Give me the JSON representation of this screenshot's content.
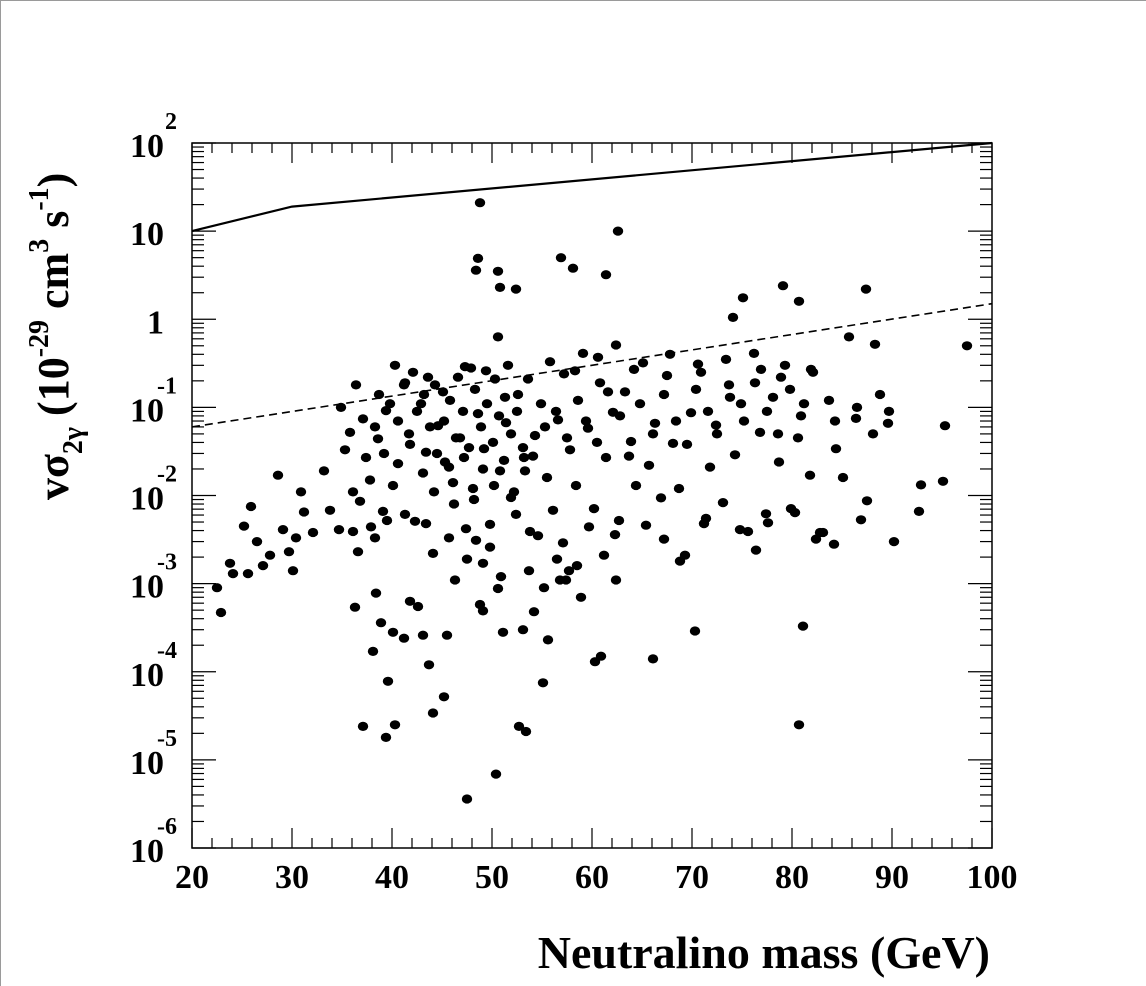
{
  "chart_data": {
    "type": "scatter",
    "title": "",
    "xlabel": "Neutralino mass (GeV)",
    "ylabel": "vσ2γ (10-29 cm3 s-1)",
    "ylabel_parts": {
      "v": "v",
      "sigma": "σ",
      "sub": "2γ",
      "open": " (10",
      "exp1": "-29",
      "cm": " cm",
      "exp2": "3",
      "s": " s",
      "exp3": "-1",
      "close": ")"
    },
    "xlim": [
      20,
      100
    ],
    "ylim": [
      1e-06,
      100
    ],
    "yscale": "log",
    "grid": false,
    "xticks": [
      "20",
      "30",
      "40",
      "50",
      "60",
      "70",
      "80",
      "90",
      "100"
    ],
    "yticks": [
      {
        "base": "10",
        "exp": "-6"
      },
      {
        "base": "10",
        "exp": "-5"
      },
      {
        "base": "10",
        "exp": "-4"
      },
      {
        "base": "10",
        "exp": "-3"
      },
      {
        "base": "10",
        "exp": "-2"
      },
      {
        "base": "10",
        "exp": "-1"
      },
      {
        "base": "1",
        "exp": ""
      },
      {
        "base": "10",
        "exp": ""
      },
      {
        "base": "10",
        "exp": "2"
      }
    ],
    "lines": [
      {
        "style": "solid",
        "x": [
          20,
          30,
          100
        ],
        "y": [
          10,
          19,
          100
        ]
      },
      {
        "style": "dashed",
        "x": [
          20,
          100
        ],
        "y": [
          0.06,
          1.5
        ]
      }
    ],
    "points": [
      [
        22.5,
        0.0009
      ],
      [
        22.9,
        0.00047
      ],
      [
        23.8,
        0.0017
      ],
      [
        24.1,
        0.0013
      ],
      [
        25.2,
        0.0045
      ],
      [
        25.9,
        0.0075
      ],
      [
        26.5,
        0.003
      ],
      [
        25.6,
        0.0013
      ],
      [
        27.1,
        0.0016
      ],
      [
        27.8,
        0.0021
      ],
      [
        28.6,
        0.017
      ],
      [
        29.1,
        0.0041
      ],
      [
        29.7,
        0.0023
      ],
      [
        30.4,
        0.0033
      ],
      [
        30.1,
        0.0014
      ],
      [
        30.9,
        0.011
      ],
      [
        31.2,
        0.0065
      ],
      [
        32.1,
        0.0038
      ],
      [
        33.8,
        0.0068
      ],
      [
        33.2,
        0.019
      ],
      [
        34.7,
        0.0041
      ],
      [
        35.3,
        0.033
      ],
      [
        35.8,
        0.052
      ],
      [
        36.1,
        0.011
      ],
      [
        36.6,
        0.0023
      ],
      [
        37.1,
        0.074
      ],
      [
        36.8,
        0.0086
      ],
      [
        37.4,
        0.027
      ],
      [
        38.3,
        0.0033
      ],
      [
        38.6,
        0.044
      ],
      [
        39.1,
        0.0066
      ],
      [
        39.4,
        0.092
      ],
      [
        40.1,
        0.013
      ],
      [
        40.6,
        0.023
      ],
      [
        41.2,
        0.18
      ],
      [
        41.8,
        0.038
      ],
      [
        42.3,
        0.0051
      ],
      [
        42.9,
        0.11
      ],
      [
        43.4,
        0.031
      ],
      [
        44.1,
        0.0022
      ],
      [
        44.6,
        0.062
      ],
      [
        45.1,
        0.15
      ],
      [
        45.7,
        0.021
      ],
      [
        46.2,
        0.008
      ],
      [
        46.8,
        0.045
      ],
      [
        47.3,
        0.29
      ],
      [
        48.1,
        0.012
      ],
      [
        48.6,
        0.085
      ],
      [
        49.2,
        0.034
      ],
      [
        49.8,
        0.0047
      ],
      [
        50.3,
        0.21
      ],
      [
        50.8,
        0.019
      ],
      [
        51.4,
        0.067
      ],
      [
        51.9,
        0.0095
      ],
      [
        52.6,
        0.14
      ],
      [
        53.2,
        0.027
      ],
      [
        53.8,
        0.0039
      ],
      [
        54.3,
        0.048
      ],
      [
        54.9,
        0.11
      ],
      [
        55.5,
        0.016
      ],
      [
        56.1,
        0.0068
      ],
      [
        56.6,
        0.072
      ],
      [
        57.2,
        0.24
      ],
      [
        57.8,
        0.033
      ],
      [
        58.4,
        0.013
      ],
      [
        59.1,
        0.41
      ],
      [
        59.6,
        0.058
      ],
      [
        60.2,
        0.0071
      ],
      [
        60.8,
        0.19
      ],
      [
        61.4,
        0.027
      ],
      [
        62.1,
        0.088
      ],
      [
        62.7,
        0.0052
      ],
      [
        63.3,
        0.15
      ],
      [
        63.9,
        0.041
      ],
      [
        64.4,
        0.013
      ],
      [
        65.1,
        0.32
      ],
      [
        65.7,
        0.022
      ],
      [
        66.3,
        0.066
      ],
      [
        66.9,
        0.0094
      ],
      [
        67.5,
        0.23
      ],
      [
        68.1,
        0.039
      ],
      [
        68.7,
        0.012
      ],
      [
        69.3,
        0.0021
      ],
      [
        69.9,
        0.087
      ],
      [
        70.6,
        0.31
      ],
      [
        71.2,
        0.0048
      ],
      [
        71.8,
        0.021
      ],
      [
        72.4,
        0.063
      ],
      [
        73.1,
        0.0083
      ],
      [
        73.7,
        0.18
      ],
      [
        74.3,
        0.029
      ],
      [
        74.9,
        0.11
      ],
      [
        75.6,
        0.0039
      ],
      [
        76.2,
        0.41
      ],
      [
        76.8,
        0.052
      ],
      [
        77.4,
        0.0062
      ],
      [
        78.1,
        0.13
      ],
      [
        78.7,
        0.024
      ],
      [
        79.3,
        0.3
      ],
      [
        79.9,
        0.0071
      ],
      [
        80.6,
        0.045
      ],
      [
        81.2,
        0.11
      ],
      [
        81.8,
        0.017
      ],
      [
        82.4,
        0.0032
      ],
      [
        83.1,
        0.0038
      ],
      [
        83.7,
        0.12
      ],
      [
        84.4,
        0.034
      ],
      [
        85.1,
        0.016
      ],
      [
        85.7,
        0.63
      ],
      [
        86.4,
        0.075
      ],
      [
        86.9,
        0.0053
      ],
      [
        87.5,
        0.0087
      ],
      [
        88.3,
        0.52
      ],
      [
        88.8,
        0.14
      ],
      [
        89.6,
        0.066
      ],
      [
        90.2,
        0.003
      ],
      [
        92.7,
        0.0066
      ],
      [
        92.9,
        0.0132
      ],
      [
        95.1,
        0.0145
      ],
      [
        95.3,
        0.062
      ],
      [
        97.5,
        0.5
      ],
      [
        36.3,
        0.00054
      ],
      [
        37.1,
        2.4e-05
      ],
      [
        38.1,
        0.00017
      ],
      [
        38.4,
        0.00078
      ],
      [
        38.9,
        0.00036
      ],
      [
        39.6,
        7.8e-05
      ],
      [
        39.4,
        1.8e-05
      ],
      [
        40.1,
        0.00028
      ],
      [
        40.3,
        2.5e-05
      ],
      [
        41.2,
        0.00024
      ],
      [
        41.8,
        0.00063
      ],
      [
        42.6,
        0.00055
      ],
      [
        43.1,
        0.00026
      ],
      [
        43.7,
        0.00012
      ],
      [
        44.1,
        3.4e-05
      ],
      [
        45.2,
        5.2e-05
      ],
      [
        45.5,
        0.00026
      ],
      [
        47.5,
        3.6e-06
      ],
      [
        48.8,
        0.00058
      ],
      [
        49.1,
        0.00049
      ],
      [
        50.4,
        6.9e-06
      ],
      [
        50.6,
        0.00088
      ],
      [
        51.1,
        0.00028
      ],
      [
        52.7,
        2.4e-05
      ],
      [
        53.4,
        2.1e-05
      ],
      [
        53.1,
        0.0003
      ],
      [
        54.2,
        0.00048
      ],
      [
        55.1,
        7.5e-05
      ],
      [
        55.6,
        0.00023
      ],
      [
        56.8,
        0.0011
      ],
      [
        57.7,
        0.0014
      ],
      [
        58.5,
        0.0016
      ],
      [
        60.3,
        0.00013
      ],
      [
        60.9,
        0.00015
      ],
      [
        62.4,
        0.0011
      ],
      [
        66.1,
        0.00014
      ],
      [
        70.3,
        0.00029
      ],
      [
        80.7,
        2.5e-05
      ],
      [
        81.1,
        0.00033
      ],
      [
        82.8,
        0.0038
      ],
      [
        48.8,
        21
      ],
      [
        48.6,
        4.9
      ],
      [
        48.4,
        3.6
      ],
      [
        50.6,
        3.5
      ],
      [
        50.8,
        2.3
      ],
      [
        52.4,
        2.2
      ],
      [
        56.9,
        5
      ],
      [
        58.1,
        3.8
      ],
      [
        61.4,
        3.2
      ],
      [
        62.6,
        10
      ],
      [
        75.1,
        1.75
      ],
      [
        79.1,
        2.4
      ],
      [
        80.7,
        1.6
      ],
      [
        87.4,
        2.2
      ],
      [
        74.1,
        1.05
      ],
      [
        50.6,
        0.63
      ],
      [
        62.4,
        0.51
      ],
      [
        42.5,
        0.09
      ],
      [
        43.2,
        0.14
      ],
      [
        43.8,
        0.06
      ],
      [
        44.5,
        0.03
      ],
      [
        45.2,
        0.07
      ],
      [
        45.8,
        0.12
      ],
      [
        46.4,
        0.045
      ],
      [
        47.1,
        0.09
      ],
      [
        47.7,
        0.035
      ],
      [
        48.3,
        0.16
      ],
      [
        48.9,
        0.06
      ],
      [
        49.5,
        0.11
      ],
      [
        50.1,
        0.04
      ],
      [
        50.7,
        0.08
      ],
      [
        51.3,
        0.13
      ],
      [
        51.9,
        0.05
      ],
      [
        52.5,
        0.09
      ],
      [
        53.1,
        0.035
      ],
      [
        43.1,
        0.018
      ],
      [
        44.2,
        0.011
      ],
      [
        45.3,
        0.024
      ],
      [
        46.1,
        0.014
      ],
      [
        47.2,
        0.027
      ],
      [
        48.2,
        0.009
      ],
      [
        49.1,
        0.02
      ],
      [
        50.2,
        0.013
      ],
      [
        51.2,
        0.025
      ],
      [
        52.2,
        0.011
      ],
      [
        53.3,
        0.019
      ],
      [
        54.1,
        0.028
      ],
      [
        40.6,
        0.07
      ],
      [
        41.7,
        0.05
      ],
      [
        39.2,
        0.03
      ],
      [
        38.3,
        0.06
      ],
      [
        37.8,
        0.015
      ],
      [
        55.3,
        0.06
      ],
      [
        56.4,
        0.09
      ],
      [
        57.5,
        0.045
      ],
      [
        58.6,
        0.12
      ],
      [
        59.4,
        0.07
      ],
      [
        60.5,
        0.04
      ],
      [
        61.6,
        0.15
      ],
      [
        62.8,
        0.08
      ],
      [
        63.7,
        0.028
      ],
      [
        64.8,
        0.11
      ],
      [
        66.1,
        0.05
      ],
      [
        67.2,
        0.14
      ],
      [
        68.4,
        0.07
      ],
      [
        69.5,
        0.038
      ],
      [
        70.4,
        0.16
      ],
      [
        71.6,
        0.09
      ],
      [
        72.5,
        0.05
      ],
      [
        73.8,
        0.13
      ],
      [
        75.2,
        0.07
      ],
      [
        76.3,
        0.19
      ],
      [
        77.5,
        0.09
      ],
      [
        78.6,
        0.05
      ],
      [
        79.8,
        0.16
      ],
      [
        80.9,
        0.08
      ],
      [
        82.1,
        0.25
      ],
      [
        84.3,
        0.07
      ],
      [
        86.5,
        0.1
      ],
      [
        88.1,
        0.05
      ],
      [
        89.7,
        0.09
      ],
      [
        46.6,
        0.22
      ],
      [
        47.9,
        0.28
      ],
      [
        49.4,
        0.26
      ],
      [
        51.6,
        0.3
      ],
      [
        53.6,
        0.21
      ],
      [
        55.8,
        0.33
      ],
      [
        58.3,
        0.26
      ],
      [
        60.6,
        0.37
      ],
      [
        64.2,
        0.27
      ],
      [
        67.8,
        0.4
      ],
      [
        70.9,
        0.25
      ],
      [
        73.4,
        0.35
      ],
      [
        76.9,
        0.27
      ],
      [
        78.9,
        0.22
      ],
      [
        81.9,
        0.27
      ],
      [
        44.3,
        0.18
      ],
      [
        42.1,
        0.25
      ],
      [
        40.3,
        0.3
      ],
      [
        38.7,
        0.14
      ],
      [
        36.4,
        0.18
      ],
      [
        34.9,
        0.1
      ],
      [
        39.8,
        0.11
      ],
      [
        41.3,
        0.19
      ],
      [
        43.6,
        0.22
      ],
      [
        47.4,
        0.0042
      ],
      [
        49.8,
        0.0026
      ],
      [
        52.4,
        0.0061
      ],
      [
        54.6,
        0.0035
      ],
      [
        57.1,
        0.0029
      ],
      [
        59.7,
        0.0044
      ],
      [
        62.3,
        0.0036
      ],
      [
        65.4,
        0.0046
      ],
      [
        67.2,
        0.0032
      ],
      [
        71.4,
        0.0055
      ],
      [
        74.8,
        0.0041
      ],
      [
        77.6,
        0.0049
      ],
      [
        80.3,
        0.0064
      ],
      [
        45.7,
        0.0033
      ],
      [
        43.4,
        0.0048
      ],
      [
        41.3,
        0.0061
      ],
      [
        39.5,
        0.0052
      ],
      [
        37.9,
        0.0044
      ],
      [
        36.1,
        0.0039
      ],
      [
        49.1,
        0.0017
      ],
      [
        53.7,
        0.0014
      ],
      [
        56.5,
        0.0019
      ],
      [
        61.2,
        0.0021
      ],
      [
        68.8,
        0.0018
      ],
      [
        76.4,
        0.0024
      ],
      [
        84.2,
        0.0028
      ],
      [
        46.3,
        0.0011
      ],
      [
        47.5,
        0.0019
      ],
      [
        48.4,
        0.0031
      ],
      [
        50.9,
        0.0012
      ],
      [
        55.2,
        0.0009
      ],
      [
        58.9,
        0.0007
      ],
      [
        57.4,
        0.0011
      ]
    ]
  }
}
